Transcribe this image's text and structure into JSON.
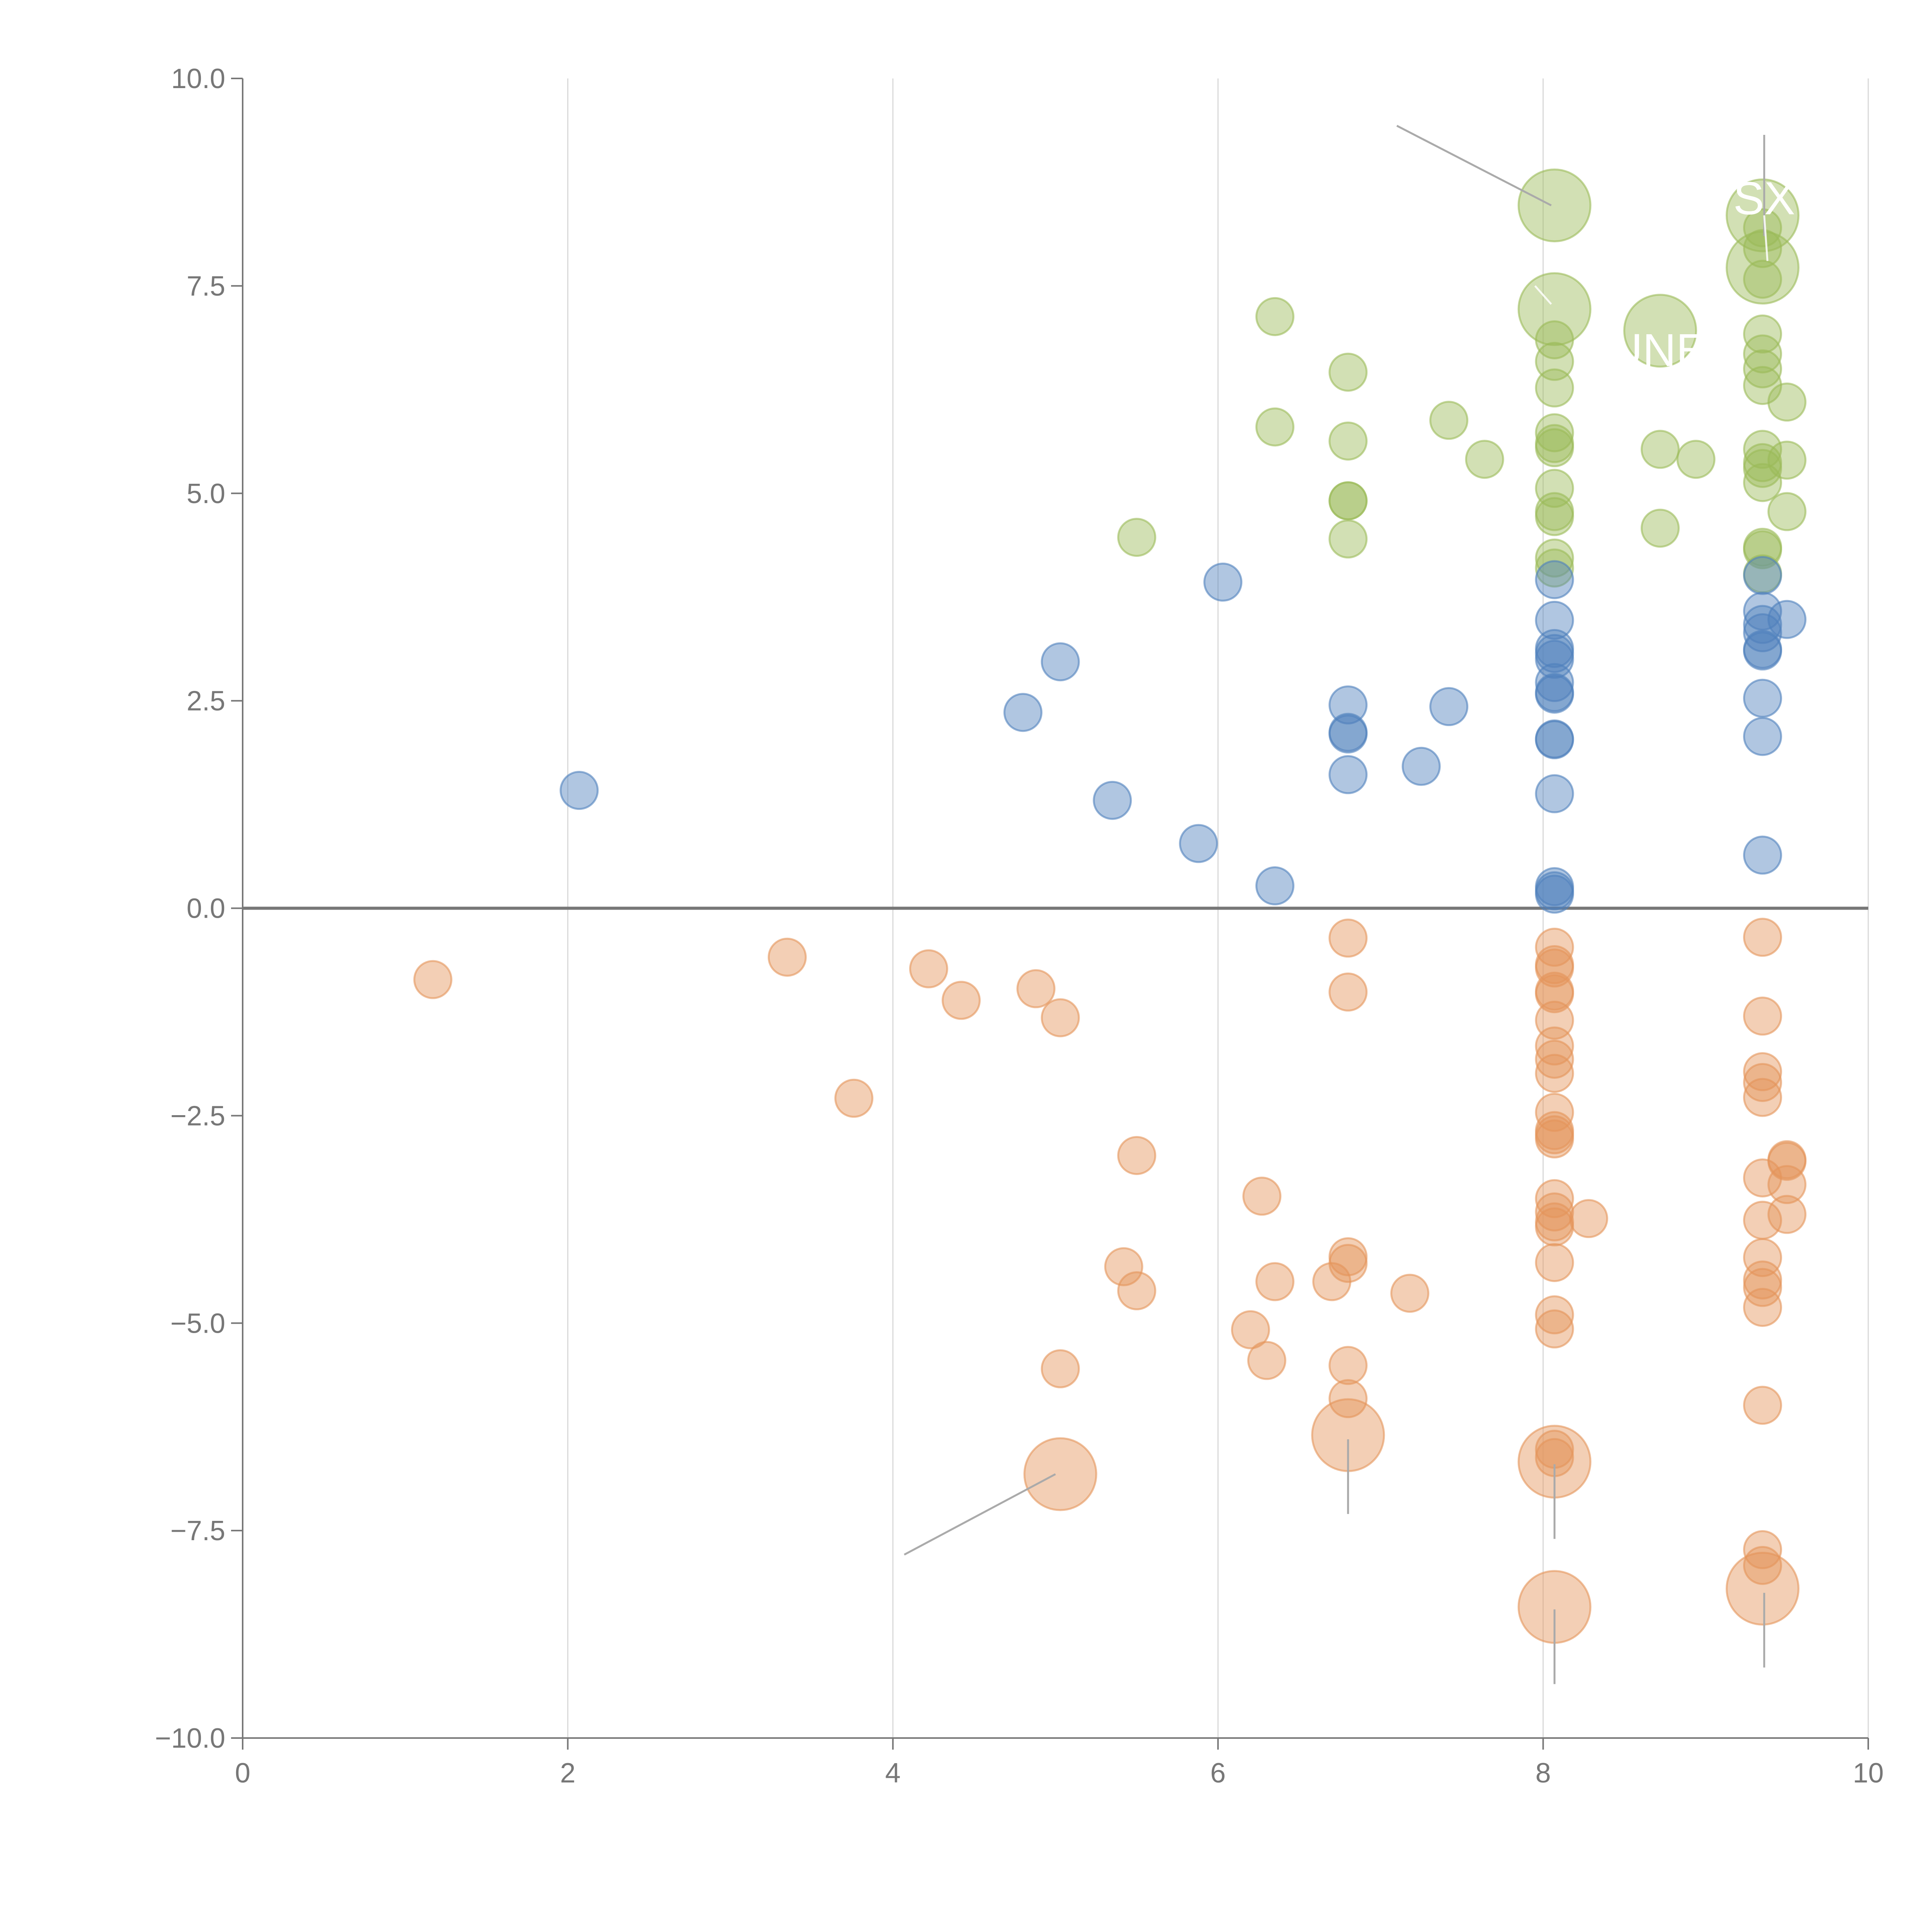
{
  "chart_data": {
    "type": "scatter",
    "title": "",
    "xlabel": "",
    "ylabel": "",
    "xlim": [
      0,
      10
    ],
    "ylim": [
      -10,
      10
    ],
    "x_ticks": [
      0,
      2,
      4,
      6,
      8,
      10
    ],
    "x_tick_labels": [
      "0",
      "2",
      "4",
      "6",
      "8",
      "10"
    ],
    "y_ticks": [
      10,
      7.5,
      5,
      2.5,
      0,
      -2.5,
      -5,
      -7.5,
      -10
    ],
    "y_tick_labels": [
      "10.0",
      "7.5",
      "5.0",
      "2.5",
      "0.0",
      "−2.5",
      "−5.0",
      "−7.5",
      "−10.0"
    ],
    "vertical_grid": true,
    "zero_line": true,
    "marker_opacity": 0.45,
    "series": [
      {
        "name": "green",
        "color": "#9bbb59",
        "points": [
          [
            8.07,
            8.47,
            3
          ],
          [
            9.35,
            8.35,
            3
          ],
          [
            9.35,
            7.72,
            3
          ],
          [
            8.07,
            7.22,
            3
          ],
          [
            8.72,
            6.96,
            3
          ],
          [
            6.35,
            7.13,
            1
          ],
          [
            6.8,
            6.46,
            1
          ],
          [
            6.35,
            5.8,
            1
          ],
          [
            6.8,
            5.63,
            1
          ],
          [
            7.42,
            5.88,
            1
          ],
          [
            7.64,
            5.41,
            1
          ],
          [
            6.8,
            4.91,
            1
          ],
          [
            6.8,
            4.91,
            1
          ],
          [
            6.8,
            4.45,
            1
          ],
          [
            5.5,
            4.47,
            1
          ],
          [
            8.07,
            6.85,
            1
          ],
          [
            8.07,
            6.59,
            1
          ],
          [
            8.07,
            6.27,
            1
          ],
          [
            8.07,
            5.73,
            1
          ],
          [
            8.07,
            5.6,
            1
          ],
          [
            8.07,
            5.55,
            1
          ],
          [
            8.07,
            5.06,
            1
          ],
          [
            8.07,
            4.78,
            1
          ],
          [
            8.07,
            4.72,
            1
          ],
          [
            8.07,
            4.22,
            1
          ],
          [
            8.07,
            4.1,
            1
          ],
          [
            8.72,
            5.53,
            1
          ],
          [
            8.94,
            5.41,
            1
          ],
          [
            8.72,
            4.58,
            1
          ],
          [
            9.35,
            8.2,
            1
          ],
          [
            9.35,
            7.95,
            1
          ],
          [
            9.35,
            7.58,
            1
          ],
          [
            9.35,
            6.92,
            1
          ],
          [
            9.35,
            6.68,
            1
          ],
          [
            9.35,
            6.5,
            1
          ],
          [
            9.35,
            6.3,
            1
          ],
          [
            9.5,
            6.1,
            1
          ],
          [
            9.35,
            5.53,
            1
          ],
          [
            9.35,
            5.37,
            1
          ],
          [
            9.35,
            5.3,
            1
          ],
          [
            9.5,
            5.4,
            1
          ],
          [
            9.35,
            5.13,
            1
          ],
          [
            9.5,
            4.78,
            1
          ],
          [
            9.35,
            4.35,
            1
          ],
          [
            9.35,
            4.32,
            1
          ],
          [
            9.35,
            4.03,
            1
          ]
        ]
      },
      {
        "name": "blue",
        "color": "#4f81bd",
        "points": [
          [
            2.07,
            1.42,
            1
          ],
          [
            4.8,
            2.36,
            1
          ],
          [
            5.03,
            2.97,
            1
          ],
          [
            5.35,
            1.3,
            1
          ],
          [
            5.88,
            0.78,
            1
          ],
          [
            6.03,
            3.93,
            1
          ],
          [
            6.35,
            0.27,
            1
          ],
          [
            6.8,
            2.45,
            1
          ],
          [
            6.8,
            2.12,
            1
          ],
          [
            6.8,
            2.1,
            1
          ],
          [
            6.8,
            1.61,
            1
          ],
          [
            7.25,
            1.71,
            1
          ],
          [
            7.42,
            2.43,
            1
          ],
          [
            8.07,
            3.96,
            1
          ],
          [
            8.07,
            3.47,
            1
          ],
          [
            8.07,
            3.13,
            1
          ],
          [
            8.07,
            3.07,
            1
          ],
          [
            8.07,
            3.0,
            1
          ],
          [
            8.07,
            2.72,
            1
          ],
          [
            8.07,
            2.6,
            1
          ],
          [
            8.07,
            2.58,
            1
          ],
          [
            8.07,
            2.04,
            1
          ],
          [
            8.07,
            2.03,
            1
          ],
          [
            8.07,
            1.38,
            1
          ],
          [
            8.07,
            0.26,
            1
          ],
          [
            8.07,
            0.21,
            1
          ],
          [
            8.07,
            0.17,
            1
          ],
          [
            9.35,
            4.01,
            1
          ],
          [
            9.35,
            3.58,
            1
          ],
          [
            9.35,
            3.42,
            1
          ],
          [
            9.35,
            3.32,
            1
          ],
          [
            9.35,
            3.12,
            1
          ],
          [
            9.35,
            3.1,
            1
          ],
          [
            9.5,
            3.48,
            1
          ],
          [
            9.35,
            2.53,
            1
          ],
          [
            9.35,
            2.07,
            1
          ],
          [
            9.35,
            0.64,
            1
          ]
        ]
      },
      {
        "name": "orange",
        "color": "#e5955a",
        "points": [
          [
            5.03,
            -6.82,
            3
          ],
          [
            6.8,
            -6.35,
            3
          ],
          [
            8.07,
            -6.67,
            3
          ],
          [
            8.07,
            -8.42,
            3
          ],
          [
            9.35,
            -8.2,
            3
          ],
          [
            1.17,
            -0.86,
            1
          ],
          [
            3.35,
            -0.59,
            1
          ],
          [
            3.76,
            -2.29,
            1
          ],
          [
            4.22,
            -0.73,
            1
          ],
          [
            4.42,
            -1.11,
            1
          ],
          [
            4.88,
            -0.97,
            1
          ],
          [
            5.03,
            -1.32,
            1
          ],
          [
            5.5,
            -2.98,
            1
          ],
          [
            5.42,
            -4.32,
            1
          ],
          [
            5.5,
            -4.61,
            1
          ],
          [
            5.03,
            -5.55,
            1
          ],
          [
            6.2,
            -5.08,
            1
          ],
          [
            6.27,
            -3.47,
            1
          ],
          [
            6.35,
            -4.5,
            1
          ],
          [
            6.3,
            -5.45,
            1
          ],
          [
            6.7,
            -4.5,
            1
          ],
          [
            6.8,
            -4.2,
            1
          ],
          [
            6.8,
            -4.28,
            1
          ],
          [
            6.8,
            -5.51,
            1
          ],
          [
            6.8,
            -5.91,
            1
          ],
          [
            7.18,
            -4.64,
            1
          ],
          [
            6.8,
            -0.36,
            1
          ],
          [
            6.8,
            -1.01,
            1
          ],
          [
            8.07,
            -0.47,
            1
          ],
          [
            8.07,
            -0.68,
            1
          ],
          [
            8.07,
            -0.72,
            1
          ],
          [
            8.07,
            -1.0,
            1
          ],
          [
            8.07,
            -1.03,
            1
          ],
          [
            8.07,
            -1.35,
            1
          ],
          [
            8.07,
            -1.66,
            1
          ],
          [
            8.07,
            -1.82,
            1
          ],
          [
            8.07,
            -1.99,
            1
          ],
          [
            8.07,
            -2.46,
            1
          ],
          [
            8.07,
            -2.68,
            1
          ],
          [
            8.07,
            -2.73,
            1
          ],
          [
            8.07,
            -2.78,
            1
          ],
          [
            8.07,
            -3.5,
            1
          ],
          [
            8.07,
            -3.66,
            1
          ],
          [
            8.07,
            -3.78,
            1
          ],
          [
            8.07,
            -3.84,
            1
          ],
          [
            8.28,
            -3.74,
            1
          ],
          [
            8.07,
            -4.27,
            1
          ],
          [
            8.07,
            -4.9,
            1
          ],
          [
            8.07,
            -5.07,
            1
          ],
          [
            8.07,
            -6.52,
            1
          ],
          [
            8.07,
            -6.62,
            1
          ],
          [
            9.35,
            -0.35,
            1
          ],
          [
            9.35,
            -1.3,
            1
          ],
          [
            9.35,
            -1.97,
            1
          ],
          [
            9.35,
            -2.1,
            1
          ],
          [
            9.35,
            -2.28,
            1
          ],
          [
            9.5,
            -3.03,
            1
          ],
          [
            9.5,
            -3.05,
            1
          ],
          [
            9.5,
            -3.33,
            1
          ],
          [
            9.5,
            -3.69,
            1
          ],
          [
            9.35,
            -3.25,
            1
          ],
          [
            9.35,
            -3.76,
            1
          ],
          [
            9.35,
            -4.21,
            1
          ],
          [
            9.35,
            -4.48,
            1
          ],
          [
            9.35,
            -4.57,
            1
          ],
          [
            9.35,
            -4.81,
            1
          ],
          [
            9.35,
            -5.99,
            1
          ],
          [
            9.35,
            -7.73,
            1
          ],
          [
            9.35,
            -7.92,
            1
          ]
        ]
      }
    ],
    "leader_lines": [
      {
        "from": [
          7.1,
          9.43
        ],
        "to": [
          8.05,
          8.47
        ],
        "style": "grey"
      },
      {
        "from": [
          9.36,
          9.32
        ],
        "to": [
          9.36,
          8.1
        ],
        "style": "grey"
      },
      {
        "from": [
          9.36,
          8.35
        ],
        "to": [
          9.38,
          7.8
        ],
        "style": "white"
      },
      {
        "from": [
          7.95,
          7.5
        ],
        "to": [
          8.05,
          7.28
        ],
        "style": "white"
      },
      {
        "from": [
          4.07,
          -7.79
        ],
        "to": [
          5.0,
          -6.82
        ],
        "style": "grey"
      },
      {
        "from": [
          6.8,
          -6.4
        ],
        "to": [
          6.8,
          -7.3
        ],
        "style": "grey"
      },
      {
        "from": [
          8.07,
          -6.7
        ],
        "to": [
          8.07,
          -7.6
        ],
        "style": "grey"
      },
      {
        "from": [
          8.07,
          -8.45
        ],
        "to": [
          8.07,
          -9.35
        ],
        "style": "grey"
      },
      {
        "from": [
          9.36,
          -8.25
        ],
        "to": [
          9.36,
          -9.15
        ],
        "style": "grey"
      }
    ],
    "annotations": [
      {
        "text": "SX",
        "x": 9.36,
        "y": 8.55
      },
      {
        "text": "FUNE",
        "x": 8.62,
        "y": 6.72
      }
    ]
  }
}
